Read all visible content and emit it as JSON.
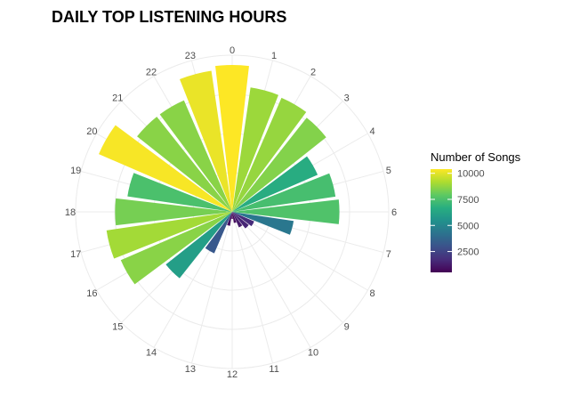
{
  "chart_data": {
    "type": "bar",
    "coordinate_system": "polar",
    "title": "DAILY TOP LISTENING HOURS",
    "categories": [
      "0",
      "1",
      "2",
      "3",
      "4",
      "5",
      "6",
      "7",
      "8",
      "9",
      "10",
      "11",
      "12",
      "13",
      "14",
      "15",
      "16",
      "17",
      "18",
      "19",
      "20",
      "21",
      "22",
      "23"
    ],
    "values": [
      10400,
      8900,
      8800,
      8500,
      6600,
      7400,
      7600,
      4400,
      1700,
      1500,
      1200,
      800,
      500,
      1000,
      3200,
      6000,
      8600,
      9000,
      8300,
      7500,
      10300,
      8600,
      8600,
      10100
    ],
    "value_scale_max": 10400,
    "color_scale": "viridis",
    "legend": {
      "title": "Number of Songs",
      "ticks": [
        2500,
        5000,
        7500,
        10000
      ],
      "tick_labels": [
        "2500",
        "5000",
        "7500",
        "10000"
      ],
      "min": 500,
      "max": 10400,
      "placement": "right"
    },
    "grid": true
  }
}
